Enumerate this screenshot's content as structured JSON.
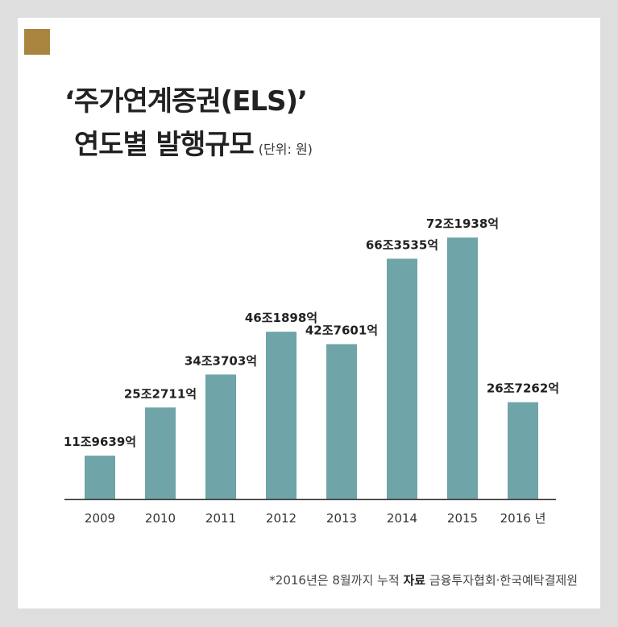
{
  "header": {
    "title_line1": "‘주가연계증권(ELS)’",
    "title_line2": "연도별 발행규모",
    "unit": "(단위: 원)"
  },
  "footnote": {
    "note": "*2016년은 8월까지 누적",
    "source_label": "자료",
    "source": "금융투자협회·한국예탁결제원"
  },
  "colors": {
    "bar": "#6fa4a8",
    "accent": "#a9853f",
    "axis": "#333333"
  },
  "chart_data": {
    "type": "bar",
    "categories": [
      "2009",
      "2010",
      "2011",
      "2012",
      "2013",
      "2014",
      "2015",
      "2016 년"
    ],
    "values": [
      11.9639,
      25.2711,
      34.3703,
      46.1898,
      42.7601,
      66.3535,
      72.1938,
      26.7262
    ],
    "value_labels": [
      "11조9639억",
      "25조2711억",
      "34조3703억",
      "46조1898억",
      "42조7601억",
      "66조3535억",
      "72조1938억",
      "26조7262억"
    ],
    "value_unit": "조 원",
    "title": "‘주가연계증권(ELS)’ 연도별 발행규모",
    "ylim": [
      0,
      80
    ],
    "grid": false
  }
}
